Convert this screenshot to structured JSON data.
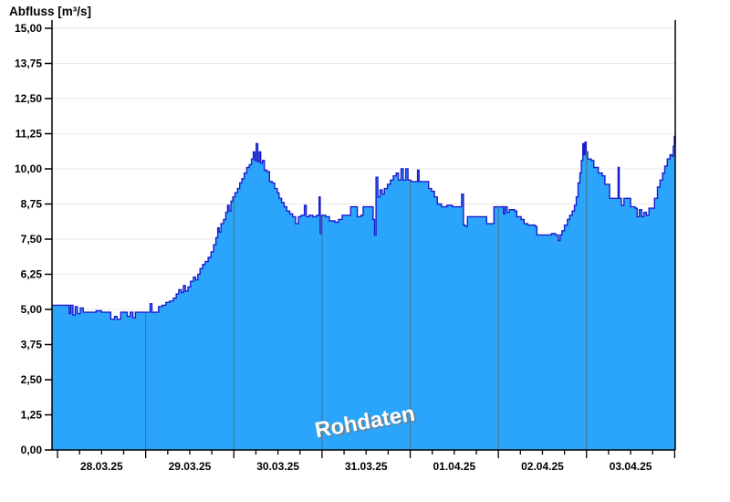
{
  "chart": {
    "title": "Abfluss [m³/s]",
    "watermark": "Rohdaten",
    "colors": {
      "area_fill": "#2BA5FB",
      "line": "#1C1CCE",
      "grid": "#EAEAEA",
      "day_line": "#44717F",
      "axis": "#000000",
      "watermark": "#FFFFFF"
    }
  },
  "chart_data": {
    "type": "area",
    "title": "Abfluss [m³/s]",
    "ylabel": "Abfluss [m³/s]",
    "ylim": [
      0,
      15
    ],
    "ytick_step": 1.25,
    "ytick_labels": [
      "0,00",
      "1,25",
      "2,50",
      "3,75",
      "5,00",
      "6,25",
      "7,50",
      "8,75",
      "10,00",
      "11,25",
      "12,50",
      "13,75",
      "15,00"
    ],
    "grid": "horizontal-light, vertical-day-boundaries",
    "legend": "none",
    "watermark": "Rohdaten",
    "x_unit": "hours since 28.03.25 00:00",
    "xlim": [
      -1.5,
      168.15
    ],
    "day_labels": [
      "28.03.25",
      "29.03.25",
      "30.03.25",
      "31.03.25",
      "01.04.25",
      "02.04.25",
      "03.04.25"
    ],
    "minor_tick_hours": 6,
    "series": [
      {
        "name": "Abfluss Rohdaten",
        "points": [
          [
            -1.5,
            5.15
          ],
          [
            2.5,
            5.15
          ],
          [
            3.2,
            4.85
          ],
          [
            3.6,
            5.15
          ],
          [
            4.2,
            4.8
          ],
          [
            4.8,
            5.1
          ],
          [
            5.4,
            4.85
          ],
          [
            6.2,
            5.05
          ],
          [
            7,
            4.9
          ],
          [
            9,
            4.9
          ],
          [
            10.5,
            4.95
          ],
          [
            12,
            4.9
          ],
          [
            14.5,
            4.65
          ],
          [
            15.5,
            4.75
          ],
          [
            16.2,
            4.65
          ],
          [
            17.2,
            4.9
          ],
          [
            19,
            4.75
          ],
          [
            19.8,
            4.9
          ],
          [
            20.5,
            4.7
          ],
          [
            21.2,
            4.9
          ],
          [
            24.3,
            4.9
          ],
          [
            25.2,
            5.2
          ],
          [
            25.7,
            4.9
          ],
          [
            27.5,
            5.1
          ],
          [
            28.5,
            5.15
          ],
          [
            29.5,
            5.25
          ],
          [
            30.5,
            5.3
          ],
          [
            31.5,
            5.4
          ],
          [
            32.3,
            5.55
          ],
          [
            33,
            5.7
          ],
          [
            33.7,
            5.6
          ],
          [
            34.3,
            5.85
          ],
          [
            34.8,
            5.65
          ],
          [
            35.5,
            5.8
          ],
          [
            36.2,
            6.0
          ],
          [
            37,
            6.15
          ],
          [
            37.6,
            6.05
          ],
          [
            38.2,
            6.25
          ],
          [
            38.8,
            6.45
          ],
          [
            39.5,
            6.6
          ],
          [
            40.2,
            6.7
          ],
          [
            41,
            6.85
          ],
          [
            41.8,
            7.05
          ],
          [
            42.5,
            7.3
          ],
          [
            43.1,
            7.55
          ],
          [
            43.6,
            7.9
          ],
          [
            44,
            7.75
          ],
          [
            44.5,
            8.05
          ],
          [
            45.2,
            8.2
          ],
          [
            45.8,
            8.45
          ],
          [
            46.3,
            8.7
          ],
          [
            46.7,
            8.5
          ],
          [
            47.2,
            8.85
          ],
          [
            47.7,
            9.0
          ],
          [
            48.3,
            9.15
          ],
          [
            49,
            9.3
          ],
          [
            49.6,
            9.5
          ],
          [
            50.2,
            9.65
          ],
          [
            50.8,
            9.85
          ],
          [
            51.5,
            10.05
          ],
          [
            52.2,
            10.15
          ],
          [
            52.8,
            10.35
          ],
          [
            53.3,
            10.6
          ],
          [
            53.7,
            10.3
          ],
          [
            54.1,
            10.9
          ],
          [
            54.5,
            10.25
          ],
          [
            54.9,
            10.6
          ],
          [
            55.3,
            10.2
          ],
          [
            55.8,
            10.3
          ],
          [
            56.3,
            9.95
          ],
          [
            57,
            9.9
          ],
          [
            57.7,
            9.55
          ],
          [
            58.4,
            9.5
          ],
          [
            59.1,
            9.3
          ],
          [
            59.8,
            9.15
          ],
          [
            60.3,
            8.95
          ],
          [
            61,
            8.8
          ],
          [
            61.7,
            8.65
          ],
          [
            62.4,
            8.5
          ],
          [
            63.2,
            8.4
          ],
          [
            64,
            8.3
          ],
          [
            64.8,
            8.05
          ],
          [
            65.6,
            8.3
          ],
          [
            66.3,
            8.35
          ],
          [
            67.2,
            8.7
          ],
          [
            67.7,
            8.3
          ],
          [
            68.5,
            8.35
          ],
          [
            69.5,
            8.3
          ],
          [
            70.5,
            8.35
          ],
          [
            71.2,
            9.0
          ],
          [
            71.5,
            7.7
          ],
          [
            71.9,
            8.35
          ],
          [
            73,
            8.3
          ],
          [
            74,
            8.15
          ],
          [
            75.5,
            8.1
          ],
          [
            76.5,
            8.2
          ],
          [
            77.5,
            8.35
          ],
          [
            79.3,
            8.35
          ],
          [
            79.8,
            8.65
          ],
          [
            81,
            8.65
          ],
          [
            81.6,
            8.3
          ],
          [
            82.6,
            8.35
          ],
          [
            83.2,
            8.65
          ],
          [
            85.3,
            8.65
          ],
          [
            85.9,
            8.2
          ],
          [
            86.3,
            7.65
          ],
          [
            86.7,
            9.7
          ],
          [
            87.2,
            9.0
          ],
          [
            87.8,
            9.25
          ],
          [
            88.4,
            9.1
          ],
          [
            89,
            9.3
          ],
          [
            89.8,
            9.45
          ],
          [
            90.6,
            9.6
          ],
          [
            91.4,
            9.75
          ],
          [
            92.2,
            9.85
          ],
          [
            92.8,
            9.6
          ],
          [
            93.5,
            10.0
          ],
          [
            94.1,
            9.6
          ],
          [
            94.8,
            10.0
          ],
          [
            95.4,
            9.6
          ],
          [
            96.2,
            9.55
          ],
          [
            97.6,
            9.55
          ],
          [
            98,
            9.95
          ],
          [
            98.4,
            9.55
          ],
          [
            100.4,
            9.55
          ],
          [
            101,
            9.3
          ],
          [
            101.8,
            9.2
          ],
          [
            102.6,
            9.0
          ],
          [
            103.4,
            8.75
          ],
          [
            104.5,
            8.65
          ],
          [
            106,
            8.7
          ],
          [
            107.5,
            8.65
          ],
          [
            109.6,
            8.65
          ],
          [
            110,
            9.1
          ],
          [
            110.5,
            8.0
          ],
          [
            111,
            7.95
          ],
          [
            111.6,
            8.3
          ],
          [
            114,
            8.3
          ],
          [
            116.3,
            8.3
          ],
          [
            116.8,
            8.05
          ],
          [
            118.3,
            8.05
          ],
          [
            118.8,
            8.65
          ],
          [
            120.8,
            8.65
          ],
          [
            121.4,
            8.4
          ],
          [
            121.8,
            8.65
          ],
          [
            122.4,
            8.45
          ],
          [
            123,
            8.55
          ],
          [
            124.4,
            8.5
          ],
          [
            125,
            8.3
          ],
          [
            126.2,
            8.2
          ],
          [
            127,
            8.05
          ],
          [
            128,
            8.0
          ],
          [
            130,
            7.95
          ],
          [
            130.5,
            7.65
          ],
          [
            133,
            7.65
          ],
          [
            134.5,
            7.7
          ],
          [
            135.5,
            7.65
          ],
          [
            136.3,
            7.45
          ],
          [
            136.8,
            7.65
          ],
          [
            137.3,
            7.8
          ],
          [
            138,
            8.0
          ],
          [
            138.8,
            8.2
          ],
          [
            139.4,
            8.35
          ],
          [
            140.1,
            8.5
          ],
          [
            140.7,
            8.7
          ],
          [
            141.2,
            9.0
          ],
          [
            141.7,
            9.5
          ],
          [
            142.2,
            9.85
          ],
          [
            142.6,
            10.3
          ],
          [
            143,
            10.9
          ],
          [
            143.3,
            10.5
          ],
          [
            143.6,
            10.95
          ],
          [
            143.9,
            10.6
          ],
          [
            144.3,
            10.35
          ],
          [
            145.3,
            10.3
          ],
          [
            146,
            10.05
          ],
          [
            147.2,
            9.85
          ],
          [
            148.3,
            9.75
          ],
          [
            149,
            9.45
          ],
          [
            150.3,
            8.95
          ],
          [
            152.4,
            8.95
          ],
          [
            152.6,
            10.05
          ],
          [
            152.9,
            8.95
          ],
          [
            153.5,
            8.7
          ],
          [
            154.2,
            8.95
          ],
          [
            155.6,
            8.95
          ],
          [
            156,
            8.65
          ],
          [
            157.2,
            8.6
          ],
          [
            157.8,
            8.3
          ],
          [
            158.4,
            8.55
          ],
          [
            159,
            8.3
          ],
          [
            159.6,
            8.45
          ],
          [
            160.3,
            8.35
          ],
          [
            161,
            8.6
          ],
          [
            162,
            8.6
          ],
          [
            162.5,
            8.95
          ],
          [
            163.3,
            9.35
          ],
          [
            164,
            9.6
          ],
          [
            164.7,
            9.85
          ],
          [
            165.3,
            10.1
          ],
          [
            166,
            10.35
          ],
          [
            166.7,
            10.5
          ],
          [
            167.2,
            10.45
          ],
          [
            167.6,
            10.8
          ],
          [
            167.9,
            11.15
          ],
          [
            168.15,
            10.9
          ]
        ]
      }
    ]
  }
}
